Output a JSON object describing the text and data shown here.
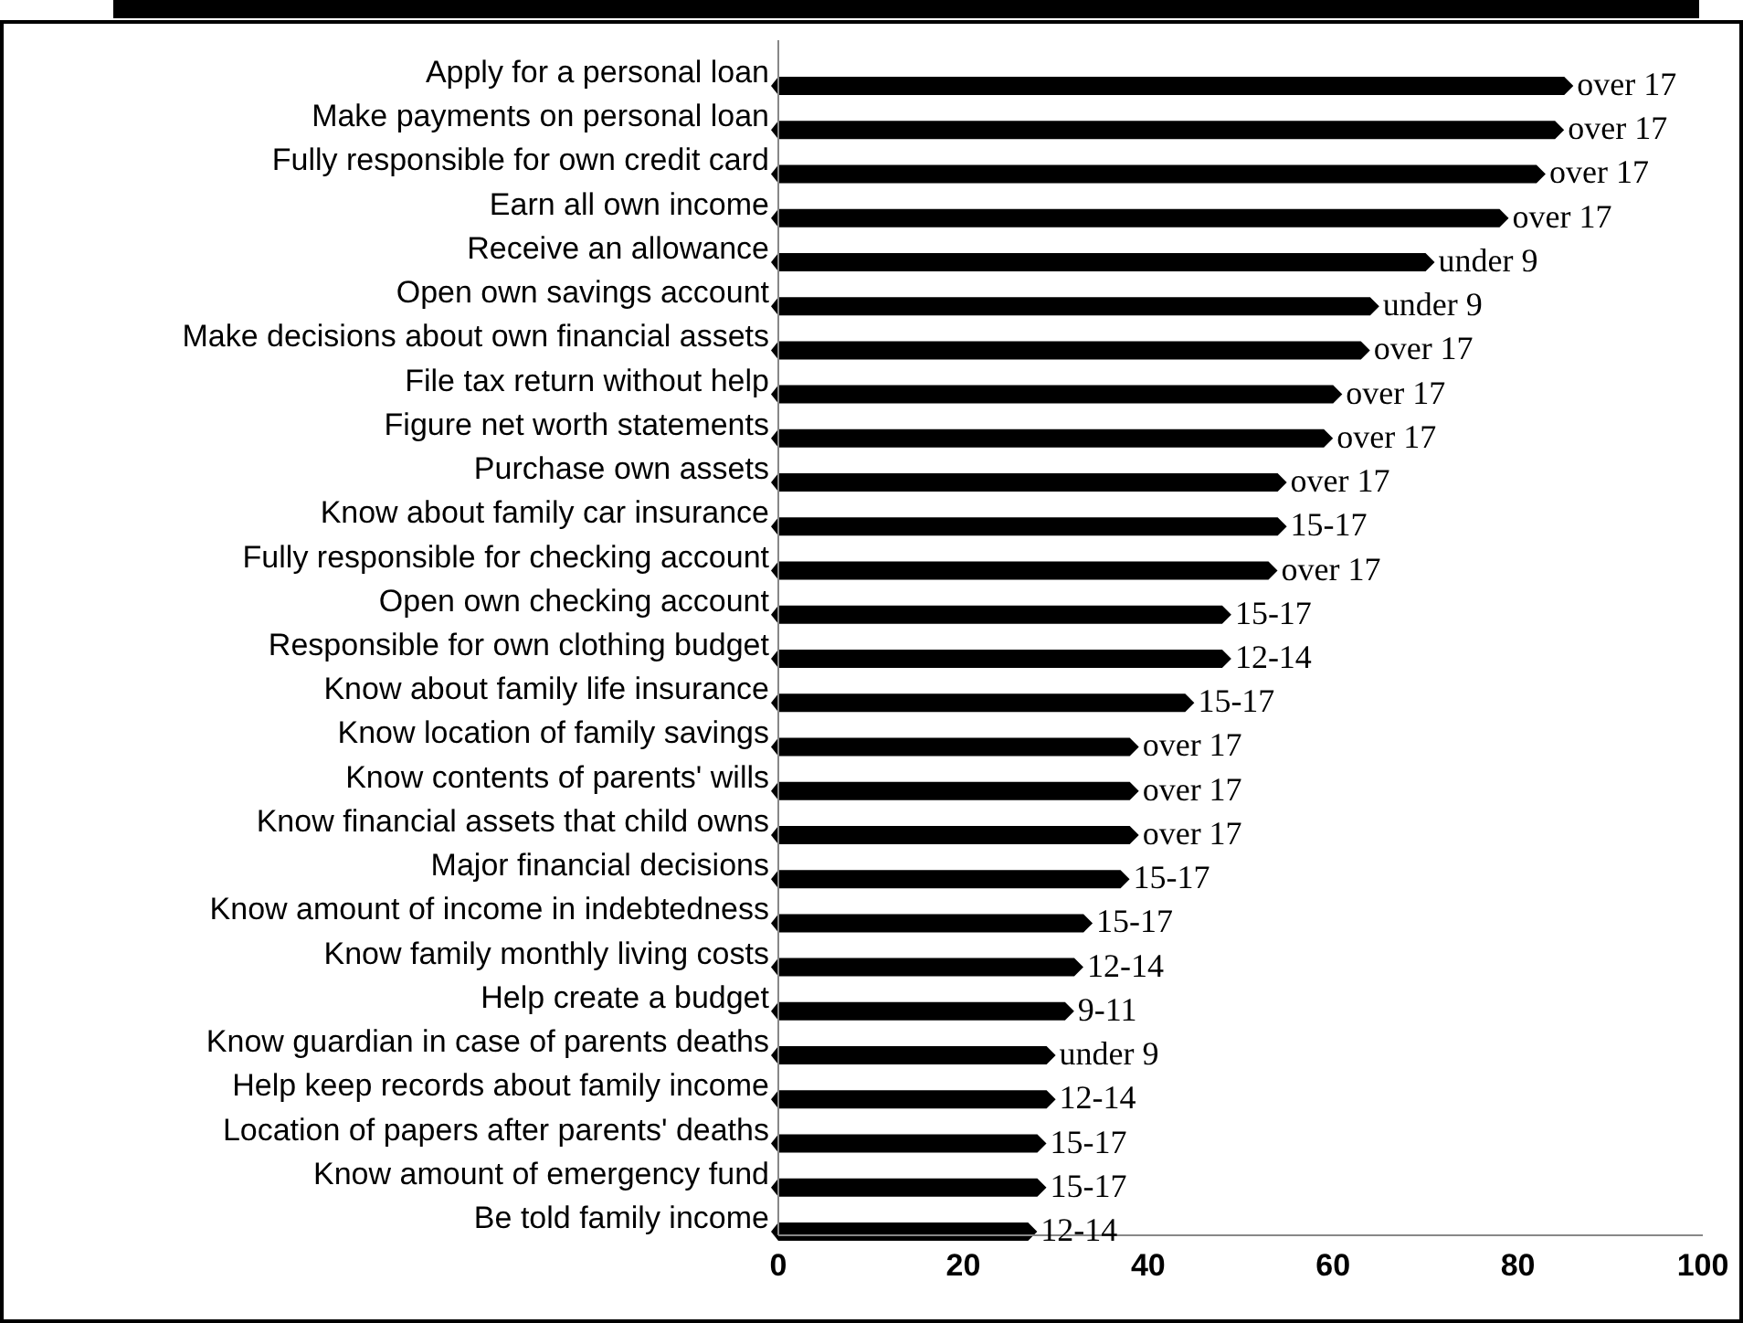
{
  "chart_data": {
    "type": "bar",
    "orientation": "horizontal",
    "categories": [
      "Apply for a personal loan",
      "Make payments on personal loan",
      "Fully responsible for own credit card",
      "Earn all own income",
      "Receive an allowance",
      "Open own savings account",
      "Make decisions about own financial assets",
      "File tax return without help",
      "Figure net worth statements",
      "Purchase own assets",
      "Know about family car insurance",
      "Fully responsible for checking account",
      "Open own checking account",
      "Responsible for own clothing budget",
      "Know about family life insurance",
      "Know location of family savings",
      "Know contents of parents' wills",
      "Know financial assets that child owns",
      "Major financial decisions",
      "Know amount of income in indebtedness",
      "Know family monthly living costs",
      "Help create a budget",
      "Know guardian in case of parents deaths",
      "Help keep records about family income",
      "Location of papers after parents' deaths",
      "Know amount of emergency fund",
      "Be told family income"
    ],
    "values": [
      86,
      85,
      83,
      79,
      71,
      65,
      64,
      61,
      60,
      55,
      55,
      54,
      49,
      49,
      45,
      39,
      39,
      39,
      38,
      34,
      33,
      32,
      30,
      30,
      29,
      29,
      28
    ],
    "value_labels": [
      "over 17",
      "over 17",
      "over 17",
      "over 17",
      "under 9",
      "under 9",
      "over 17",
      "over 17",
      "over 17",
      "over 17",
      "15-17",
      "over 17",
      "15-17",
      "12-14",
      "15-17",
      "over 17",
      "over 17",
      "over 17",
      "15-17",
      "15-17",
      "12-14",
      "9-11",
      "under 9",
      "12-14",
      "15-17",
      "15-17",
      "12-14"
    ],
    "color": "#000000",
    "xlim": [
      0,
      100
    ],
    "xticks": [
      0,
      20,
      40,
      60,
      80,
      100
    ],
    "grid": false
  }
}
